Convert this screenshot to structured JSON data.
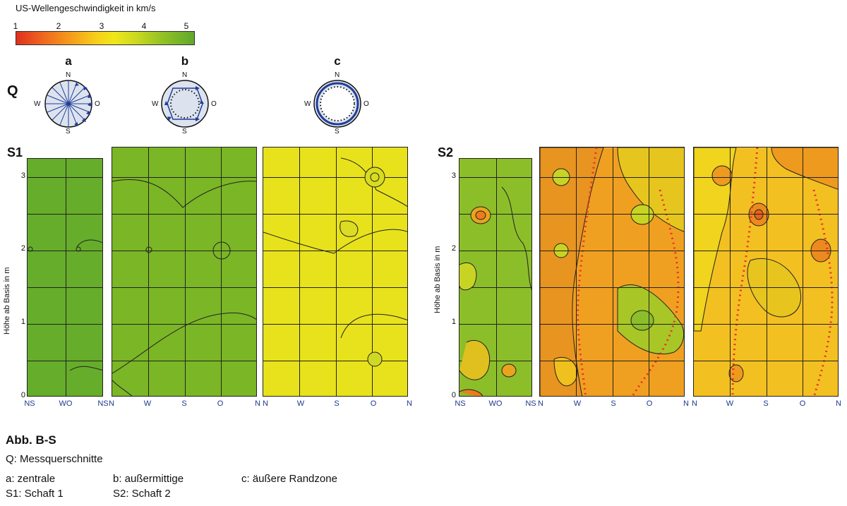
{
  "legend": {
    "title": "US-Wellengeschwindigkeit in km/s",
    "ticks": [
      "1",
      "2",
      "3",
      "4",
      "5"
    ]
  },
  "cross_sections": {
    "label": "Q",
    "items": [
      {
        "letter": "a",
        "n": "N",
        "s": "S",
        "w": "W",
        "o": "O"
      },
      {
        "letter": "b",
        "n": "N",
        "s": "S",
        "w": "W",
        "o": "O"
      },
      {
        "letter": "c",
        "n": "N",
        "s": "S",
        "w": "W",
        "o": "O"
      }
    ]
  },
  "shaft1": {
    "label": "S1",
    "y_axis_label": "Höhe ab Basis in m",
    "y_ticks": [
      "0",
      "1",
      "2",
      "3"
    ],
    "x_ticks_a": [
      "NS",
      "WO",
      "NS"
    ],
    "x_ticks_b": [
      "N",
      "W",
      "S",
      "O",
      "N"
    ],
    "x_ticks_c": [
      "N",
      "W",
      "S",
      "O",
      "N"
    ]
  },
  "shaft2": {
    "label": "S2",
    "y_axis_label": "Höhe ab Basis in m",
    "y_ticks": [
      "0",
      "1",
      "2",
      "3"
    ],
    "x_ticks_a": [
      "NS",
      "WO",
      "NS"
    ],
    "x_ticks_b": [
      "N",
      "W",
      "S",
      "O",
      "N"
    ],
    "x_ticks_c": [
      "N",
      "W",
      "S",
      "O",
      "N"
    ]
  },
  "caption": {
    "title": "Abb. B-S",
    "line_q": "Q: Messquerschnitte",
    "a": "a: zentrale",
    "b": "b: außermittige",
    "c": "c: äußere Randzone",
    "s1": "S1: Schaft 1",
    "s2": "S2: Schaft 2"
  },
  "colors": {
    "s1_central": "#66ad2b",
    "s1_offcenter": "#7bb626",
    "s1_edge": "#e8e21c",
    "s2_central": "#8cbe2a",
    "s2_offcenter": "#f0a020",
    "s2_edge": "#f3c022",
    "arrow": "#1f3d9a",
    "compass_fill": "#dde3ee",
    "dotted_line": "#e8302a"
  }
}
